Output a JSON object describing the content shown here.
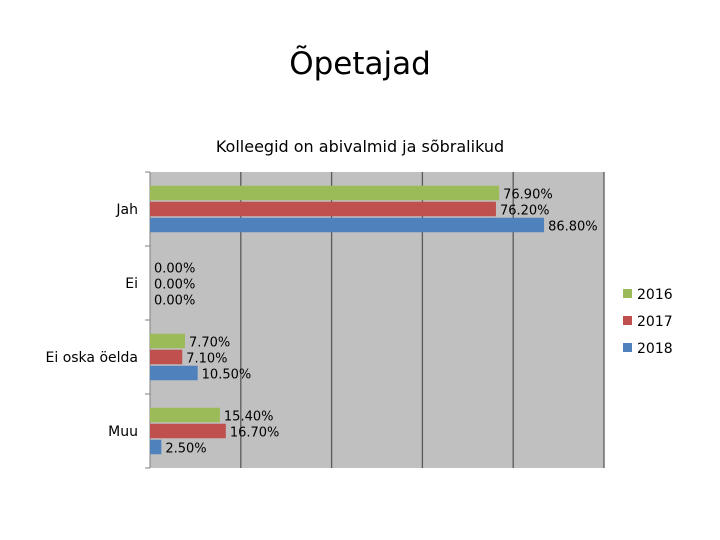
{
  "slide": {
    "title": "Õpetajad"
  },
  "chart_data": {
    "type": "bar",
    "orientation": "horizontal",
    "title": "Kolleegid on abivalmid ja sõbralikud",
    "categories": [
      "Jah",
      "Ei",
      "Ei oska öelda",
      "Muu"
    ],
    "series": [
      {
        "name": "2016",
        "color": "#9BBB59",
        "values": [
          76.9,
          0.0,
          7.7,
          15.4
        ],
        "labels": [
          "76.90%",
          "0.00%",
          "7.70%",
          "15.40%"
        ]
      },
      {
        "name": "2017",
        "color": "#C0504D",
        "values": [
          76.2,
          0.0,
          7.1,
          16.7
        ],
        "labels": [
          "76.20%",
          "0.00%",
          "7.10%",
          "16.70%"
        ]
      },
      {
        "name": "2018",
        "color": "#4F81BD",
        "values": [
          86.8,
          0.0,
          10.5,
          2.5
        ],
        "labels": [
          "86.80%",
          "0.00%",
          "10.50%",
          "2.50%"
        ]
      }
    ],
    "xlim": [
      0,
      100
    ],
    "gridlines": true,
    "plot_background": "#C0C0C0",
    "legend_position": "right",
    "legend_order": [
      "2016",
      "2017",
      "2018"
    ]
  }
}
